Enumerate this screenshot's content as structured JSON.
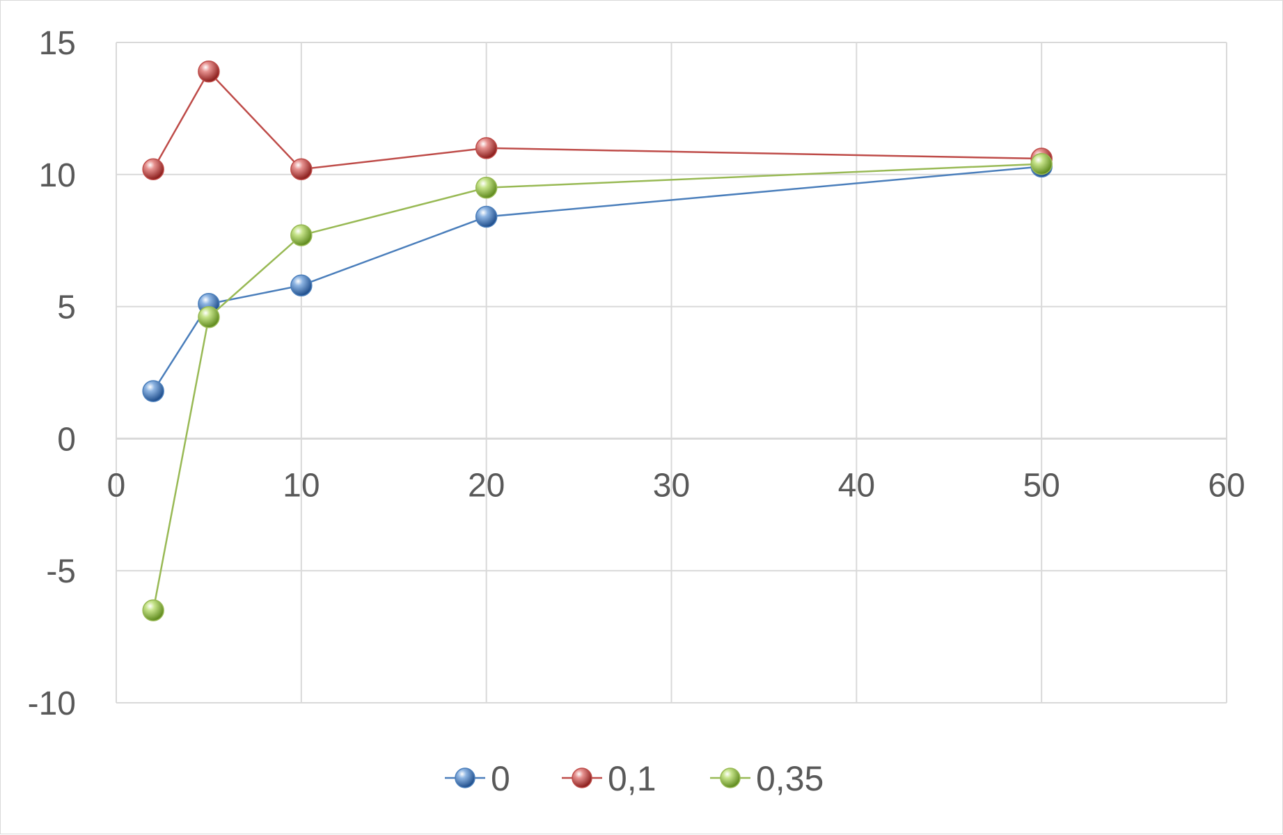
{
  "chart_data": {
    "type": "scatter",
    "title": "",
    "xlabel": "",
    "ylabel": "",
    "xlim": [
      0,
      60
    ],
    "ylim": [
      -10,
      15
    ],
    "x_ticks": [
      0,
      10,
      20,
      30,
      40,
      50,
      60
    ],
    "y_ticks": [
      -10,
      -5,
      0,
      5,
      10,
      15
    ],
    "x_tick_labels": [
      "0",
      "10",
      "20",
      "30",
      "40",
      "50",
      "60"
    ],
    "y_tick_labels": [
      "-10",
      "-5",
      "0",
      "5",
      "10",
      "15"
    ],
    "grid": true,
    "legend_position": "bottom",
    "lines_and_markers": true,
    "series": [
      {
        "name": "0",
        "color": "#4a7ebb",
        "points": [
          [
            2,
            1.8
          ],
          [
            5,
            5.1
          ],
          [
            10,
            5.8
          ],
          [
            20,
            8.4
          ],
          [
            50,
            10.3
          ]
        ]
      },
      {
        "name": "0,1",
        "color": "#be4b48",
        "points": [
          [
            2,
            10.2
          ],
          [
            5,
            13.9
          ],
          [
            10,
            10.2
          ],
          [
            20,
            11.0
          ],
          [
            50,
            10.6
          ]
        ]
      },
      {
        "name": "0,35",
        "color": "#98b954",
        "points": [
          [
            2,
            -6.5
          ],
          [
            5,
            4.6
          ],
          [
            10,
            7.7
          ],
          [
            20,
            9.5
          ],
          [
            50,
            10.4
          ]
        ]
      }
    ]
  }
}
